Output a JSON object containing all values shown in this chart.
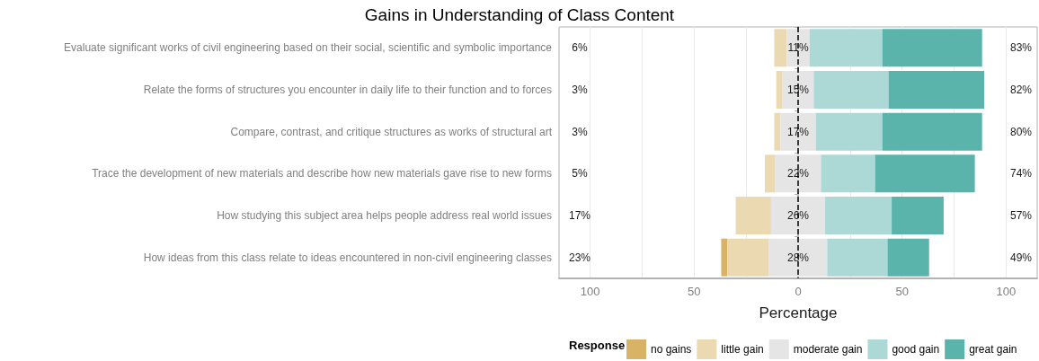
{
  "chart_data": {
    "type": "bar",
    "orientation": "horizontal",
    "title": "Gains in Understanding of Class Content",
    "xlabel": "Percentage",
    "legend_title": "Response",
    "legend": "bottom",
    "grid": true,
    "categories": [
      "Evaluate significant works of civil engineering based on their social, scientific and symbolic importance",
      "Relate the forms of structures you encounter in daily life to their function and to forces",
      "Compare, contrast, and critique structures as works of structural art",
      "Trace the development of new materials and describe how new materials gave rise to new forms",
      "How studying this subject area helps people address real world issues",
      "How ideas from this class relate to ideas encountered in non-civil engineering classes"
    ],
    "xlim": [
      -115,
      115
    ],
    "xticks": [
      {
        "value": -100,
        "label": "100"
      },
      {
        "value": -75,
        "label": null
      },
      {
        "value": -50,
        "label": "50"
      },
      {
        "value": -25,
        "label": null
      },
      0,
      {
        "value": 25,
        "label": null
      },
      50,
      {
        "value": 75,
        "label": null
      },
      100
    ],
    "series": [
      {
        "name": "no gains",
        "color": "#d8b365",
        "values": [
          0,
          0,
          0,
          0,
          0,
          3
        ],
        "base": [
          null,
          null,
          null,
          null,
          null,
          -37
        ]
      },
      {
        "name": "little gain",
        "color": "#ebd9b2",
        "values": [
          6,
          3,
          3,
          5,
          17,
          20
        ],
        "base": [
          -11.5,
          -10.5,
          -11.5,
          -16,
          -30,
          -34
        ]
      },
      {
        "name": "moderate gain",
        "color": "#e5e5e5",
        "values": [
          11,
          15,
          17,
          22,
          26,
          28
        ],
        "base": [
          -5.5,
          -7.5,
          -8.5,
          -11,
          -13,
          -14
        ],
        "value_labels": [
          "11%",
          "15%",
          "17%",
          "22%",
          "26%",
          "28%"
        ]
      },
      {
        "name": "good gain",
        "color": "#acd9d5",
        "values": [
          35,
          36,
          32,
          26,
          32,
          29
        ],
        "base": [
          5.5,
          7.5,
          8.5,
          11,
          13,
          14
        ]
      },
      {
        "name": "great gain",
        "color": "#5ab4ac",
        "values": [
          48,
          46,
          48,
          48,
          25,
          20
        ],
        "base": [
          40.5,
          43.5,
          40.5,
          37,
          45,
          43
        ]
      }
    ],
    "ref_lines": [
      {
        "axis": "x",
        "value": 0,
        "color": "#000000",
        "line_style": "dashed"
      }
    ],
    "annotations": [
      "6%",
      "3%",
      "3%",
      "5%",
      "17%",
      "23%",
      "83%",
      "82%",
      "80%",
      "74%",
      "57%",
      "49%"
    ]
  }
}
